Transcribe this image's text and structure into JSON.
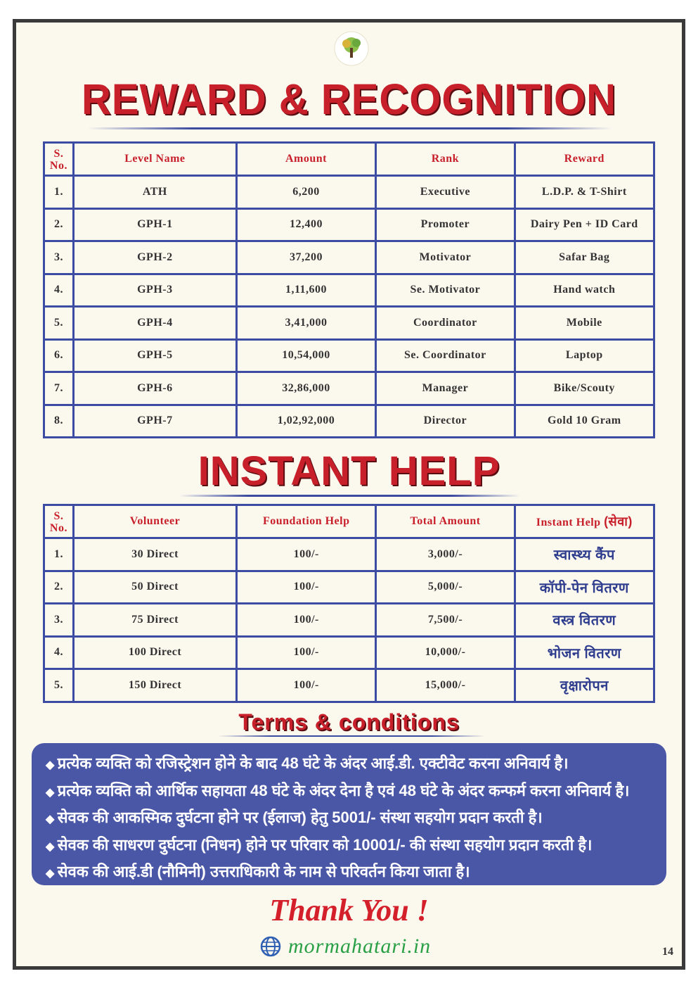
{
  "reward": {
    "title": "REWARD & RECOGNITION",
    "headers": [
      "S. No.",
      "Level Name",
      "Amount",
      "Rank",
      "Reward"
    ],
    "rows": [
      [
        "1.",
        "ATH",
        "6,200",
        "Executive",
        "L.D.P. & T-Shirt"
      ],
      [
        "2.",
        "GPH-1",
        "12,400",
        "Promoter",
        "Dairy Pen + ID Card"
      ],
      [
        "3.",
        "GPH-2",
        "37,200",
        "Motivator",
        "Safar Bag"
      ],
      [
        "4.",
        "GPH-3",
        "1,11,600",
        "Se. Motivator",
        "Hand watch"
      ],
      [
        "5.",
        "GPH-4",
        "3,41,000",
        "Coordinator",
        "Mobile"
      ],
      [
        "6.",
        "GPH-5",
        "10,54,000",
        "Se. Coordinator",
        "Laptop"
      ],
      [
        "7.",
        "GPH-6",
        "32,86,000",
        "Manager",
        "Bike/Scouty"
      ],
      [
        "8.",
        "GPH-7",
        "1,02,92,000",
        "Director",
        "Gold 10 Gram"
      ]
    ]
  },
  "help": {
    "title": "INSTANT HELP",
    "headers": [
      "S. No.",
      "Volunteer",
      "Foundation  Help",
      "Total Amount",
      "Instant Help",
      "(सेवा)"
    ],
    "rows": [
      [
        "1.",
        "30 Direct",
        "100/-",
        "3,000/-",
        "स्वास्थ्य कैंप"
      ],
      [
        "2.",
        "50 Direct",
        "100/-",
        "5,000/-",
        "कॉपी-पेन वितरण"
      ],
      [
        "3.",
        "75 Direct",
        "100/-",
        "7,500/-",
        "वस्त्र वितरण"
      ],
      [
        "4.",
        "100 Direct",
        "100/-",
        "10,000/-",
        "भोजन वितरण"
      ],
      [
        "5.",
        "150 Direct",
        "100/-",
        "15,000/-",
        "वृक्षारोपन"
      ]
    ]
  },
  "terms": {
    "title": "Terms & conditions",
    "items": [
      "प्रत्येक व्यक्ति को रजिस्ट्रेशन होने के बाद 48 घंटे के अंदर आई.डी. एक्टीवेट करना अनिवार्य है।",
      "प्रत्येक व्यक्ति को आर्थिक सहायता 48 घंटे के अंदर देना है एवं 48 घंटे के अंदर कन्फर्म करना अनिवार्य है।",
      "सेवक की आकस्मिक दुर्घटना होने पर (ईलाज) हेतु 5001/- संस्था सहयोग प्रदान करती है।",
      "सेवक की साधरण दुर्घटना (निधन) होने पर परिवार को 10001/- की संस्था सहयोग प्रदान करती है।",
      "सेवक की आई.डी (नौमिनी) उत्तराधिकारी के नाम से परिवर्तन किया जाता है।"
    ]
  },
  "footer": {
    "thanks": "Thank You !",
    "website": "mormahatari.in",
    "page": "14"
  },
  "colors": {
    "red": "#c8202b",
    "blue": "#3c4ca3",
    "panel": "#4a56a6",
    "green": "#29a046"
  }
}
